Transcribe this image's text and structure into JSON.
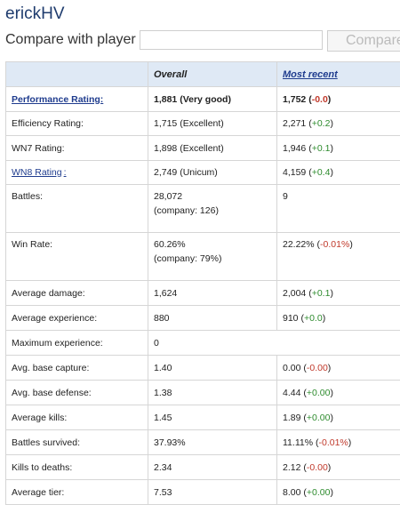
{
  "player": {
    "name": "erickHV"
  },
  "compare": {
    "label": "Compare with player",
    "button_label": "Compare",
    "input_value": ""
  },
  "table": {
    "headers": {
      "overall": "Overall",
      "recent": "Most recent"
    },
    "rows": [
      {
        "label": "Performance Rating:",
        "overall": "1,881 (Very good)",
        "recent_value": "1,752",
        "recent_delta": "-0.0",
        "delta_sign": "neg"
      },
      {
        "label": "Efficiency Rating:",
        "overall": "1,715 (Excellent)",
        "recent_value": "2,271",
        "recent_delta": "+0.2",
        "delta_sign": "pos"
      },
      {
        "label": "WN7 Rating:",
        "overall": "1,898 (Excellent)",
        "recent_value": "1,946",
        "recent_delta": "+0.1",
        "delta_sign": "pos"
      },
      {
        "label": "WN8 Rating",
        "label_suffix": ":",
        "overall": "2,749 (Unicum)",
        "recent_value": "4,159",
        "recent_delta": "+0.4",
        "delta_sign": "pos"
      },
      {
        "label": "Battles:",
        "overall": "28,072",
        "overall_sub": "(company: 126)",
        "recent_value": "9"
      },
      {
        "label": "Win Rate:",
        "overall": "60.26%",
        "overall_sub": "(company: 79%)",
        "recent_value": "22.22%",
        "recent_delta": "-0.01%",
        "delta_sign": "neg"
      },
      {
        "label": "Average damage:",
        "overall": "1,624",
        "recent_value": "2,004",
        "recent_delta": "+0.1",
        "delta_sign": "pos"
      },
      {
        "label": "Average experience:",
        "overall": "880",
        "recent_value": "910",
        "recent_delta": "+0.0",
        "delta_sign": "pos"
      },
      {
        "label": "Maximum experience:",
        "overall": "0"
      },
      {
        "label": "Avg. base capture:",
        "overall": "1.40",
        "recent_value": "0.00",
        "recent_delta": "-0.00",
        "delta_sign": "neg"
      },
      {
        "label": "Avg. base defense:",
        "overall": "1.38",
        "recent_value": "4.44",
        "recent_delta": "+0.00",
        "delta_sign": "pos"
      },
      {
        "label": "Average kills:",
        "overall": "1.45",
        "recent_value": "1.89",
        "recent_delta": "+0.00",
        "delta_sign": "pos"
      },
      {
        "label": "Battles survived:",
        "overall": "37.93%",
        "recent_value": "11.11%",
        "recent_delta": "-0.01%",
        "delta_sign": "neg"
      },
      {
        "label": "Kills to deaths:",
        "overall": "2.34",
        "recent_value": "2.12",
        "recent_delta": "-0.00",
        "delta_sign": "neg"
      },
      {
        "label": "Average tier:",
        "overall": "7.53",
        "recent_value": "8.00",
        "recent_delta": "+0.00",
        "delta_sign": "pos"
      }
    ]
  }
}
